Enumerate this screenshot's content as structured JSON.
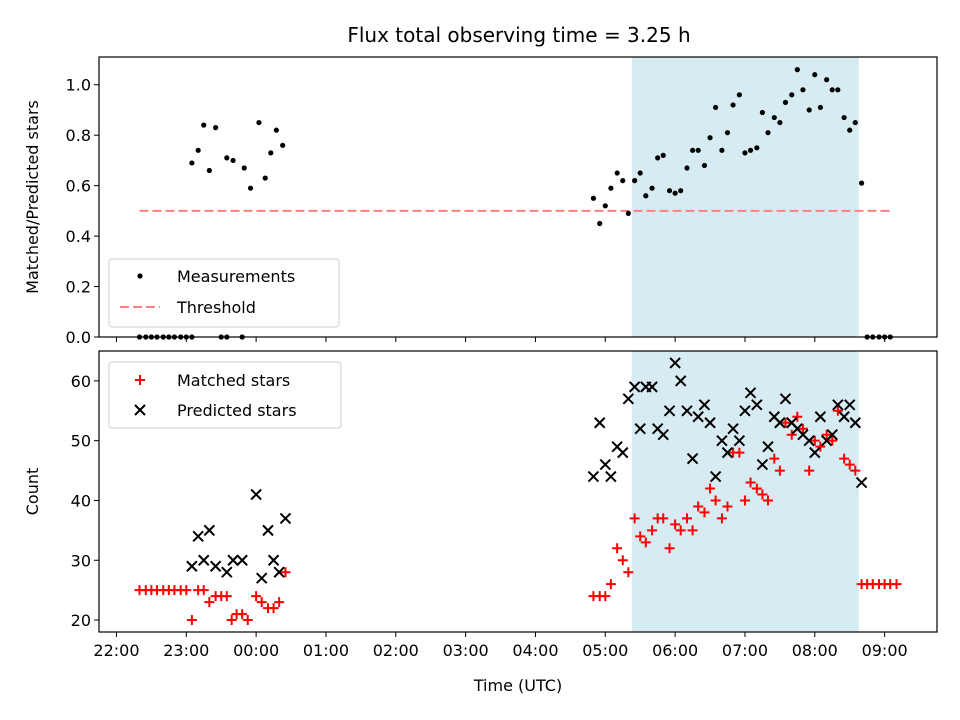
{
  "chart_data": {
    "type": "scatter",
    "title": "Flux total observing time = 3.25 h",
    "x_axis": {
      "label": "Time (UTC)",
      "unit": "hours relative to 00:00 UTC",
      "range": [
        -2.25,
        9.75
      ],
      "ticks": [
        -2,
        -1,
        0,
        1,
        2,
        3,
        4,
        5,
        6,
        7,
        8,
        9
      ],
      "tick_labels": [
        "22:00",
        "23:00",
        "00:00",
        "01:00",
        "02:00",
        "03:00",
        "04:00",
        "05:00",
        "06:00",
        "07:00",
        "08:00",
        "09:00"
      ]
    },
    "shaded_region": {
      "x_start": 5.38,
      "x_end": 8.63,
      "color": "#add8e6"
    },
    "panels": [
      {
        "id": "ratio",
        "ylabel": "Matched/Predicted stars",
        "ylim": [
          0,
          1.11
        ],
        "yticks": [
          0.0,
          0.2,
          0.4,
          0.6,
          0.8,
          1.0
        ],
        "ytick_labels": [
          "0.0",
          "0.2",
          "0.4",
          "0.6",
          "0.8",
          "1.0"
        ],
        "legend": {
          "position": "lower-left",
          "entries": [
            "Measurements",
            "Threshold"
          ]
        },
        "threshold": {
          "name": "Threshold",
          "value": 0.5,
          "x_range": [
            -1.67,
            9.08
          ],
          "color": "#ff8080"
        },
        "series": [
          {
            "name": "Measurements",
            "marker": "dot",
            "color": "#000000",
            "points": [
              [
                -1.67,
                0
              ],
              [
                -1.58,
                0
              ],
              [
                -1.5,
                0
              ],
              [
                -1.42,
                0
              ],
              [
                -1.33,
                0
              ],
              [
                -1.25,
                0
              ],
              [
                -1.17,
                0
              ],
              [
                -1.08,
                0
              ],
              [
                -1.0,
                0
              ],
              [
                -0.92,
                0
              ],
              [
                -0.5,
                0
              ],
              [
                -0.42,
                0
              ],
              [
                -0.2,
                0
              ],
              [
                -0.92,
                0.69
              ],
              [
                -0.83,
                0.74
              ],
              [
                -0.75,
                0.84
              ],
              [
                -0.67,
                0.66
              ],
              [
                -0.58,
                0.83
              ],
              [
                -0.42,
                0.71
              ],
              [
                -0.33,
                0.7
              ],
              [
                -0.17,
                0.67
              ],
              [
                -0.08,
                0.59
              ],
              [
                0.04,
                0.85
              ],
              [
                0.13,
                0.63
              ],
              [
                0.21,
                0.73
              ],
              [
                0.29,
                0.82
              ],
              [
                0.38,
                0.76
              ],
              [
                4.83,
                0.55
              ],
              [
                4.92,
                0.45
              ],
              [
                5.0,
                0.52
              ],
              [
                5.08,
                0.59
              ],
              [
                5.17,
                0.65
              ],
              [
                5.25,
                0.62
              ],
              [
                5.33,
                0.49
              ],
              [
                5.42,
                0.62
              ],
              [
                5.5,
                0.65
              ],
              [
                5.58,
                0.56
              ],
              [
                5.67,
                0.59
              ],
              [
                5.75,
                0.71
              ],
              [
                5.83,
                0.72
              ],
              [
                5.92,
                0.58
              ],
              [
                6.0,
                0.57
              ],
              [
                6.08,
                0.58
              ],
              [
                6.17,
                0.67
              ],
              [
                6.25,
                0.74
              ],
              [
                6.33,
                0.74
              ],
              [
                6.42,
                0.68
              ],
              [
                6.5,
                0.79
              ],
              [
                6.58,
                0.91
              ],
              [
                6.67,
                0.74
              ],
              [
                6.75,
                0.81
              ],
              [
                6.83,
                0.92
              ],
              [
                6.92,
                0.96
              ],
              [
                7.0,
                0.73
              ],
              [
                7.08,
                0.74
              ],
              [
                7.17,
                0.75
              ],
              [
                7.25,
                0.89
              ],
              [
                7.33,
                0.81
              ],
              [
                7.42,
                0.87
              ],
              [
                7.5,
                0.85
              ],
              [
                7.58,
                0.93
              ],
              [
                7.67,
                0.96
              ],
              [
                7.75,
                1.06
              ],
              [
                7.83,
                0.98
              ],
              [
                7.92,
                0.9
              ],
              [
                8.0,
                1.04
              ],
              [
                8.08,
                0.91
              ],
              [
                8.17,
                1.02
              ],
              [
                8.25,
                0.98
              ],
              [
                8.33,
                0.98
              ],
              [
                8.42,
                0.87
              ],
              [
                8.5,
                0.82
              ],
              [
                8.58,
                0.85
              ],
              [
                8.67,
                0.61
              ],
              [
                8.75,
                0
              ],
              [
                8.83,
                0
              ],
              [
                8.92,
                0
              ],
              [
                9.0,
                0
              ],
              [
                9.08,
                0
              ]
            ]
          }
        ]
      },
      {
        "id": "count",
        "ylabel": "Count",
        "ylim": [
          18,
          65
        ],
        "yticks": [
          20,
          30,
          40,
          50,
          60
        ],
        "ytick_labels": [
          "20",
          "30",
          "40",
          "50",
          "60"
        ],
        "legend": {
          "position": "upper-left",
          "entries": [
            "Matched stars",
            "Predicted stars"
          ]
        },
        "series": [
          {
            "name": "Matched stars",
            "marker": "plus",
            "color": "#ff0000",
            "points": [
              [
                -1.67,
                25
              ],
              [
                -1.58,
                25
              ],
              [
                -1.5,
                25
              ],
              [
                -1.42,
                25
              ],
              [
                -1.33,
                25
              ],
              [
                -1.25,
                25
              ],
              [
                -1.17,
                25
              ],
              [
                -1.08,
                25
              ],
              [
                -1.0,
                25
              ],
              [
                -0.92,
                20
              ],
              [
                -0.83,
                25
              ],
              [
                -0.75,
                25
              ],
              [
                -0.67,
                23
              ],
              [
                -0.58,
                24
              ],
              [
                -0.5,
                24
              ],
              [
                -0.42,
                24
              ],
              [
                -0.35,
                20
              ],
              [
                -0.28,
                21
              ],
              [
                -0.2,
                21
              ],
              [
                -0.12,
                20
              ],
              [
                0.0,
                24
              ],
              [
                0.08,
                23
              ],
              [
                0.17,
                22
              ],
              [
                0.25,
                22
              ],
              [
                0.33,
                23
              ],
              [
                0.42,
                28
              ],
              [
                4.83,
                24
              ],
              [
                4.92,
                24
              ],
              [
                5.0,
                24
              ],
              [
                5.08,
                26
              ],
              [
                5.17,
                32
              ],
              [
                5.25,
                30
              ],
              [
                5.33,
                28
              ],
              [
                5.42,
                37
              ],
              [
                5.5,
                34
              ],
              [
                5.58,
                33
              ],
              [
                5.67,
                35
              ],
              [
                5.75,
                37
              ],
              [
                5.83,
                37
              ],
              [
                5.92,
                32
              ],
              [
                6.0,
                36
              ],
              [
                6.08,
                35
              ],
              [
                6.17,
                37
              ],
              [
                6.25,
                35
              ],
              [
                6.33,
                39
              ],
              [
                6.42,
                38
              ],
              [
                6.5,
                42
              ],
              [
                6.58,
                40
              ],
              [
                6.67,
                37
              ],
              [
                6.75,
                39
              ],
              [
                6.83,
                48
              ],
              [
                6.92,
                48
              ],
              [
                7.0,
                40
              ],
              [
                7.08,
                43
              ],
              [
                7.17,
                42
              ],
              [
                7.25,
                41
              ],
              [
                7.33,
                40
              ],
              [
                7.42,
                47
              ],
              [
                7.5,
                45
              ],
              [
                7.58,
                53
              ],
              [
                7.67,
                51
              ],
              [
                7.75,
                54
              ],
              [
                7.83,
                52
              ],
              [
                7.92,
                45
              ],
              [
                8.0,
                50
              ],
              [
                8.08,
                49
              ],
              [
                8.17,
                51
              ],
              [
                8.25,
                50
              ],
              [
                8.33,
                55
              ],
              [
                8.42,
                47
              ],
              [
                8.5,
                46
              ],
              [
                8.58,
                45
              ],
              [
                8.67,
                26
              ],
              [
                8.75,
                26
              ],
              [
                8.83,
                26
              ],
              [
                8.92,
                26
              ],
              [
                9.0,
                26
              ],
              [
                9.08,
                26
              ],
              [
                9.17,
                26
              ]
            ]
          },
          {
            "name": "Predicted stars",
            "marker": "x",
            "color": "#000000",
            "points": [
              [
                -0.92,
                29
              ],
              [
                -0.83,
                34
              ],
              [
                -0.75,
                30
              ],
              [
                -0.67,
                35
              ],
              [
                -0.58,
                29
              ],
              [
                -0.42,
                28
              ],
              [
                -0.33,
                30
              ],
              [
                -0.2,
                30
              ],
              [
                0.0,
                41
              ],
              [
                0.08,
                27
              ],
              [
                0.17,
                35
              ],
              [
                0.25,
                30
              ],
              [
                0.33,
                28
              ],
              [
                0.42,
                37
              ],
              [
                4.83,
                44
              ],
              [
                4.92,
                53
              ],
              [
                5.0,
                46
              ],
              [
                5.08,
                44
              ],
              [
                5.17,
                49
              ],
              [
                5.25,
                48
              ],
              [
                5.33,
                57
              ],
              [
                5.42,
                59
              ],
              [
                5.5,
                52
              ],
              [
                5.58,
                59
              ],
              [
                5.67,
                59
              ],
              [
                5.75,
                52
              ],
              [
                5.83,
                51
              ],
              [
                5.92,
                55
              ],
              [
                6.0,
                63
              ],
              [
                6.08,
                60
              ],
              [
                6.17,
                55
              ],
              [
                6.25,
                47
              ],
              [
                6.33,
                54
              ],
              [
                6.42,
                56
              ],
              [
                6.5,
                53
              ],
              [
                6.58,
                44
              ],
              [
                6.67,
                50
              ],
              [
                6.75,
                48
              ],
              [
                6.83,
                52
              ],
              [
                6.92,
                50
              ],
              [
                7.0,
                55
              ],
              [
                7.08,
                58
              ],
              [
                7.17,
                56
              ],
              [
                7.25,
                46
              ],
              [
                7.33,
                49
              ],
              [
                7.42,
                54
              ],
              [
                7.5,
                53
              ],
              [
                7.58,
                57
              ],
              [
                7.67,
                53
              ],
              [
                7.75,
                52
              ],
              [
                7.83,
                51
              ],
              [
                7.92,
                50
              ],
              [
                8.0,
                48
              ],
              [
                8.08,
                54
              ],
              [
                8.17,
                50
              ],
              [
                8.25,
                51
              ],
              [
                8.33,
                56
              ],
              [
                8.42,
                54
              ],
              [
                8.5,
                56
              ],
              [
                8.58,
                53
              ],
              [
                8.67,
                43
              ]
            ]
          }
        ]
      }
    ]
  }
}
